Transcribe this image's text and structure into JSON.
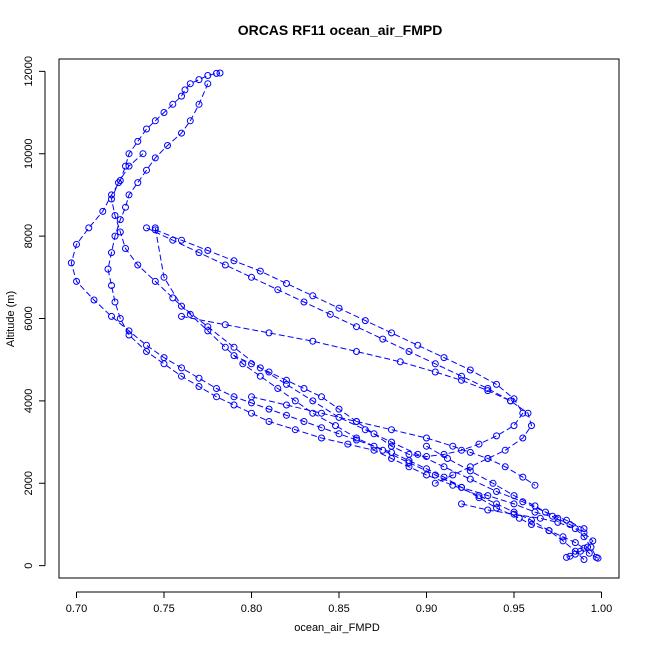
{
  "chart_data": {
    "type": "scatter",
    "title": "ORCAS RF11 ocean_air_FMPD",
    "xlabel": "ocean_air_FMPD",
    "ylabel": "Altitude (m)",
    "xlim": [
      0.69,
      1.01
    ],
    "ylim": [
      -300,
      12300
    ],
    "x_ticks": [
      0.7,
      0.75,
      0.8,
      0.85,
      0.9,
      0.95,
      1.0
    ],
    "x_tick_labels": [
      "0.70",
      "0.75",
      "0.80",
      "0.85",
      "0.90",
      "0.95",
      "1.00"
    ],
    "y_ticks": [
      0,
      2000,
      4000,
      6000,
      8000,
      10000,
      12000
    ],
    "y_tick_labels": [
      "0",
      "2000",
      "4000",
      "6000",
      "8000",
      "10000",
      "12000"
    ],
    "grid": false,
    "legend": "none",
    "color": "#0000ff",
    "marker": "open-circle",
    "line_style": "dashed",
    "series": [
      {
        "segments": [
          {
            "x": [
              0.998,
              0.993,
              0.99,
              0.985,
              0.978,
              0.97,
              0.96,
              0.953,
              0.94,
              0.93,
              0.92,
              0.91,
              0.9,
              0.89,
              0.88,
              0.87,
              0.86,
              0.85,
              0.84,
              0.83,
              0.82,
              0.81,
              0.8,
              0.79,
              0.78,
              0.77,
              0.76,
              0.75,
              0.74,
              0.73,
              0.72,
              0.71,
              0.7,
              0.697,
              0.7,
              0.707,
              0.715,
              0.72,
              0.725,
              0.728,
              0.73,
              0.735,
              0.74,
              0.745,
              0.75,
              0.755,
              0.76,
              0.762,
              0.765,
              0.77,
              0.775,
              0.78,
              0.782
            ],
            "y": [
              180,
              300,
              420,
              560,
              700,
              850,
              1000,
              1150,
              1400,
              1650,
              1900,
              2150,
              2350,
              2550,
              2750,
              2900,
              3050,
              3200,
              3350,
              3500,
              3650,
              3800,
              3950,
              4100,
              4300,
              4550,
              4800,
              5050,
              5350,
              5700,
              6050,
              6450,
              6900,
              7350,
              7800,
              8200,
              8600,
              9000,
              9350,
              9700,
              10000,
              10300,
              10600,
              10800,
              11000,
              11200,
              11400,
              11550,
              11700,
              11800,
              11900,
              11950,
              11960
            ]
          },
          {
            "x": [
              0.99,
              0.985,
              0.978,
              0.97,
              0.96,
              0.95,
              0.94,
              0.93,
              0.915,
              0.9,
              0.89,
              0.88,
              0.87,
              0.855,
              0.84,
              0.825,
              0.81,
              0.8,
              0.79,
              0.78,
              0.77,
              0.76,
              0.75,
              0.74,
              0.73,
              0.725,
              0.722,
              0.72,
              0.718,
              0.72,
              0.722,
              0.725,
              0.728,
              0.73,
              0.735,
              0.74,
              0.745,
              0.752,
              0.76,
              0.765,
              0.77,
              0.775
            ],
            "y": [
              150,
              350,
              600,
              850,
              1100,
              1300,
              1500,
              1700,
              1950,
              2200,
              2400,
              2600,
              2800,
              2950,
              3100,
              3300,
              3500,
              3700,
              3900,
              4100,
              4350,
              4600,
              4900,
              5200,
              5600,
              6000,
              6400,
              6800,
              7200,
              7600,
              8000,
              8400,
              8700,
              9000,
              9300,
              9600,
              9900,
              10200,
              10500,
              10800,
              11200,
              11700
            ]
          },
          {
            "x": [
              0.975,
              0.962,
              0.95,
              0.935,
              0.92,
              0.905,
              0.89,
              0.875,
              0.86,
              0.848,
              0.835,
              0.825,
              0.815,
              0.805,
              0.795,
              0.785,
              0.775,
              0.765,
              0.755,
              0.745,
              0.735,
              0.728,
              0.725,
              0.722,
              0.72,
              0.724,
              0.73,
              0.738
            ],
            "y": [
              1150,
              1300,
              1500,
              1700,
              1900,
              2200,
              2500,
              2800,
              3100,
              3400,
              3700,
              4000,
              4300,
              4600,
              4900,
              5300,
              5700,
              6100,
              6500,
              6900,
              7300,
              7700,
              8100,
              8500,
              8900,
              9300,
              9700,
              10000
            ]
          },
          {
            "x": [
              0.99,
              0.98,
              0.968,
              0.955,
              0.94,
              0.925,
              0.91,
              0.895,
              0.88,
              0.865,
              0.85,
              0.835,
              0.82,
              0.805,
              0.79,
              0.775,
              0.76,
              0.75,
              0.745
            ],
            "y": [
              900,
              1100,
              1300,
              1550,
              1800,
              2100,
              2400,
              2700,
              3000,
              3300,
              3600,
              4000,
              4400,
              4800,
              5300,
              5800,
              6300,
              7000,
              8200
            ]
          },
          {
            "x": [
              0.745,
              0.76,
              0.775,
              0.79,
              0.805,
              0.82,
              0.835,
              0.85,
              0.865,
              0.88,
              0.895,
              0.91,
              0.925,
              0.94,
              0.95,
              0.955,
              0.95,
              0.94,
              0.93,
              0.92,
              0.91,
              0.9,
              0.89,
              0.88,
              0.87,
              0.86,
              0.85,
              0.84,
              0.83,
              0.82,
              0.81,
              0.8,
              0.79
            ],
            "y": [
              8150,
              7900,
              7650,
              7400,
              7150,
              6850,
              6550,
              6250,
              5950,
              5650,
              5350,
              5050,
              4750,
              4400,
              4050,
              3700,
              3400,
              3150,
              2950,
              2800,
              2700,
              2650,
              2700,
              2900,
              3200,
              3500,
              3800,
              4100,
              4300,
              4500,
              4700,
              4900,
              5100
            ]
          },
          {
            "x": [
              0.74,
              0.755,
              0.77,
              0.785,
              0.8,
              0.815,
              0.83,
              0.845,
              0.86,
              0.875,
              0.89,
              0.905,
              0.92,
              0.935,
              0.948,
              0.958,
              0.96,
              0.955,
              0.945,
              0.935,
              0.925,
              0.915,
              0.905
            ],
            "y": [
              8200,
              7900,
              7600,
              7300,
              7000,
              6700,
              6400,
              6100,
              5800,
              5500,
              5200,
              4900,
              4600,
              4300,
              4000,
              3700,
              3400,
              3100,
              2800,
              2600,
              2400,
              2200,
              2000
            ]
          },
          {
            "x": [
              0.76,
              0.785,
              0.81,
              0.835,
              0.86,
              0.885,
              0.905,
              0.92,
              0.935,
              0.948
            ],
            "y": [
              6050,
              5850,
              5650,
              5450,
              5200,
              4950,
              4700,
              4500,
              4250,
              4000
            ]
          },
          {
            "x": [
              0.8,
              0.82,
              0.84,
              0.86,
              0.88,
              0.9,
              0.915,
              0.925,
              0.935,
              0.945,
              0.955,
              0.962
            ],
            "y": [
              4100,
              3900,
              3700,
              3500,
              3300,
              3100,
              2900,
              2750,
              2600,
              2400,
              2150,
              1950
            ]
          },
          {
            "x": [
              0.9,
              0.912,
              0.925,
              0.938,
              0.95,
              0.962,
              0.972,
              0.982,
              0.99,
              0.995,
              0.992,
              0.988,
              0.985,
              0.982,
              0.98
            ],
            "y": [
              2900,
              2600,
              2300,
              2000,
              1700,
              1450,
              1200,
              1000,
              800,
              600,
              450,
              350,
              280,
              230,
              200
            ]
          },
          {
            "x": [
              0.92,
              0.935,
              0.95,
              0.965,
              0.975,
              0.985,
              0.99,
              0.994,
              0.997
            ],
            "y": [
              1500,
              1350,
              1250,
              1150,
              1050,
              900,
              700,
              450,
              200
            ]
          }
        ]
      }
    ]
  }
}
